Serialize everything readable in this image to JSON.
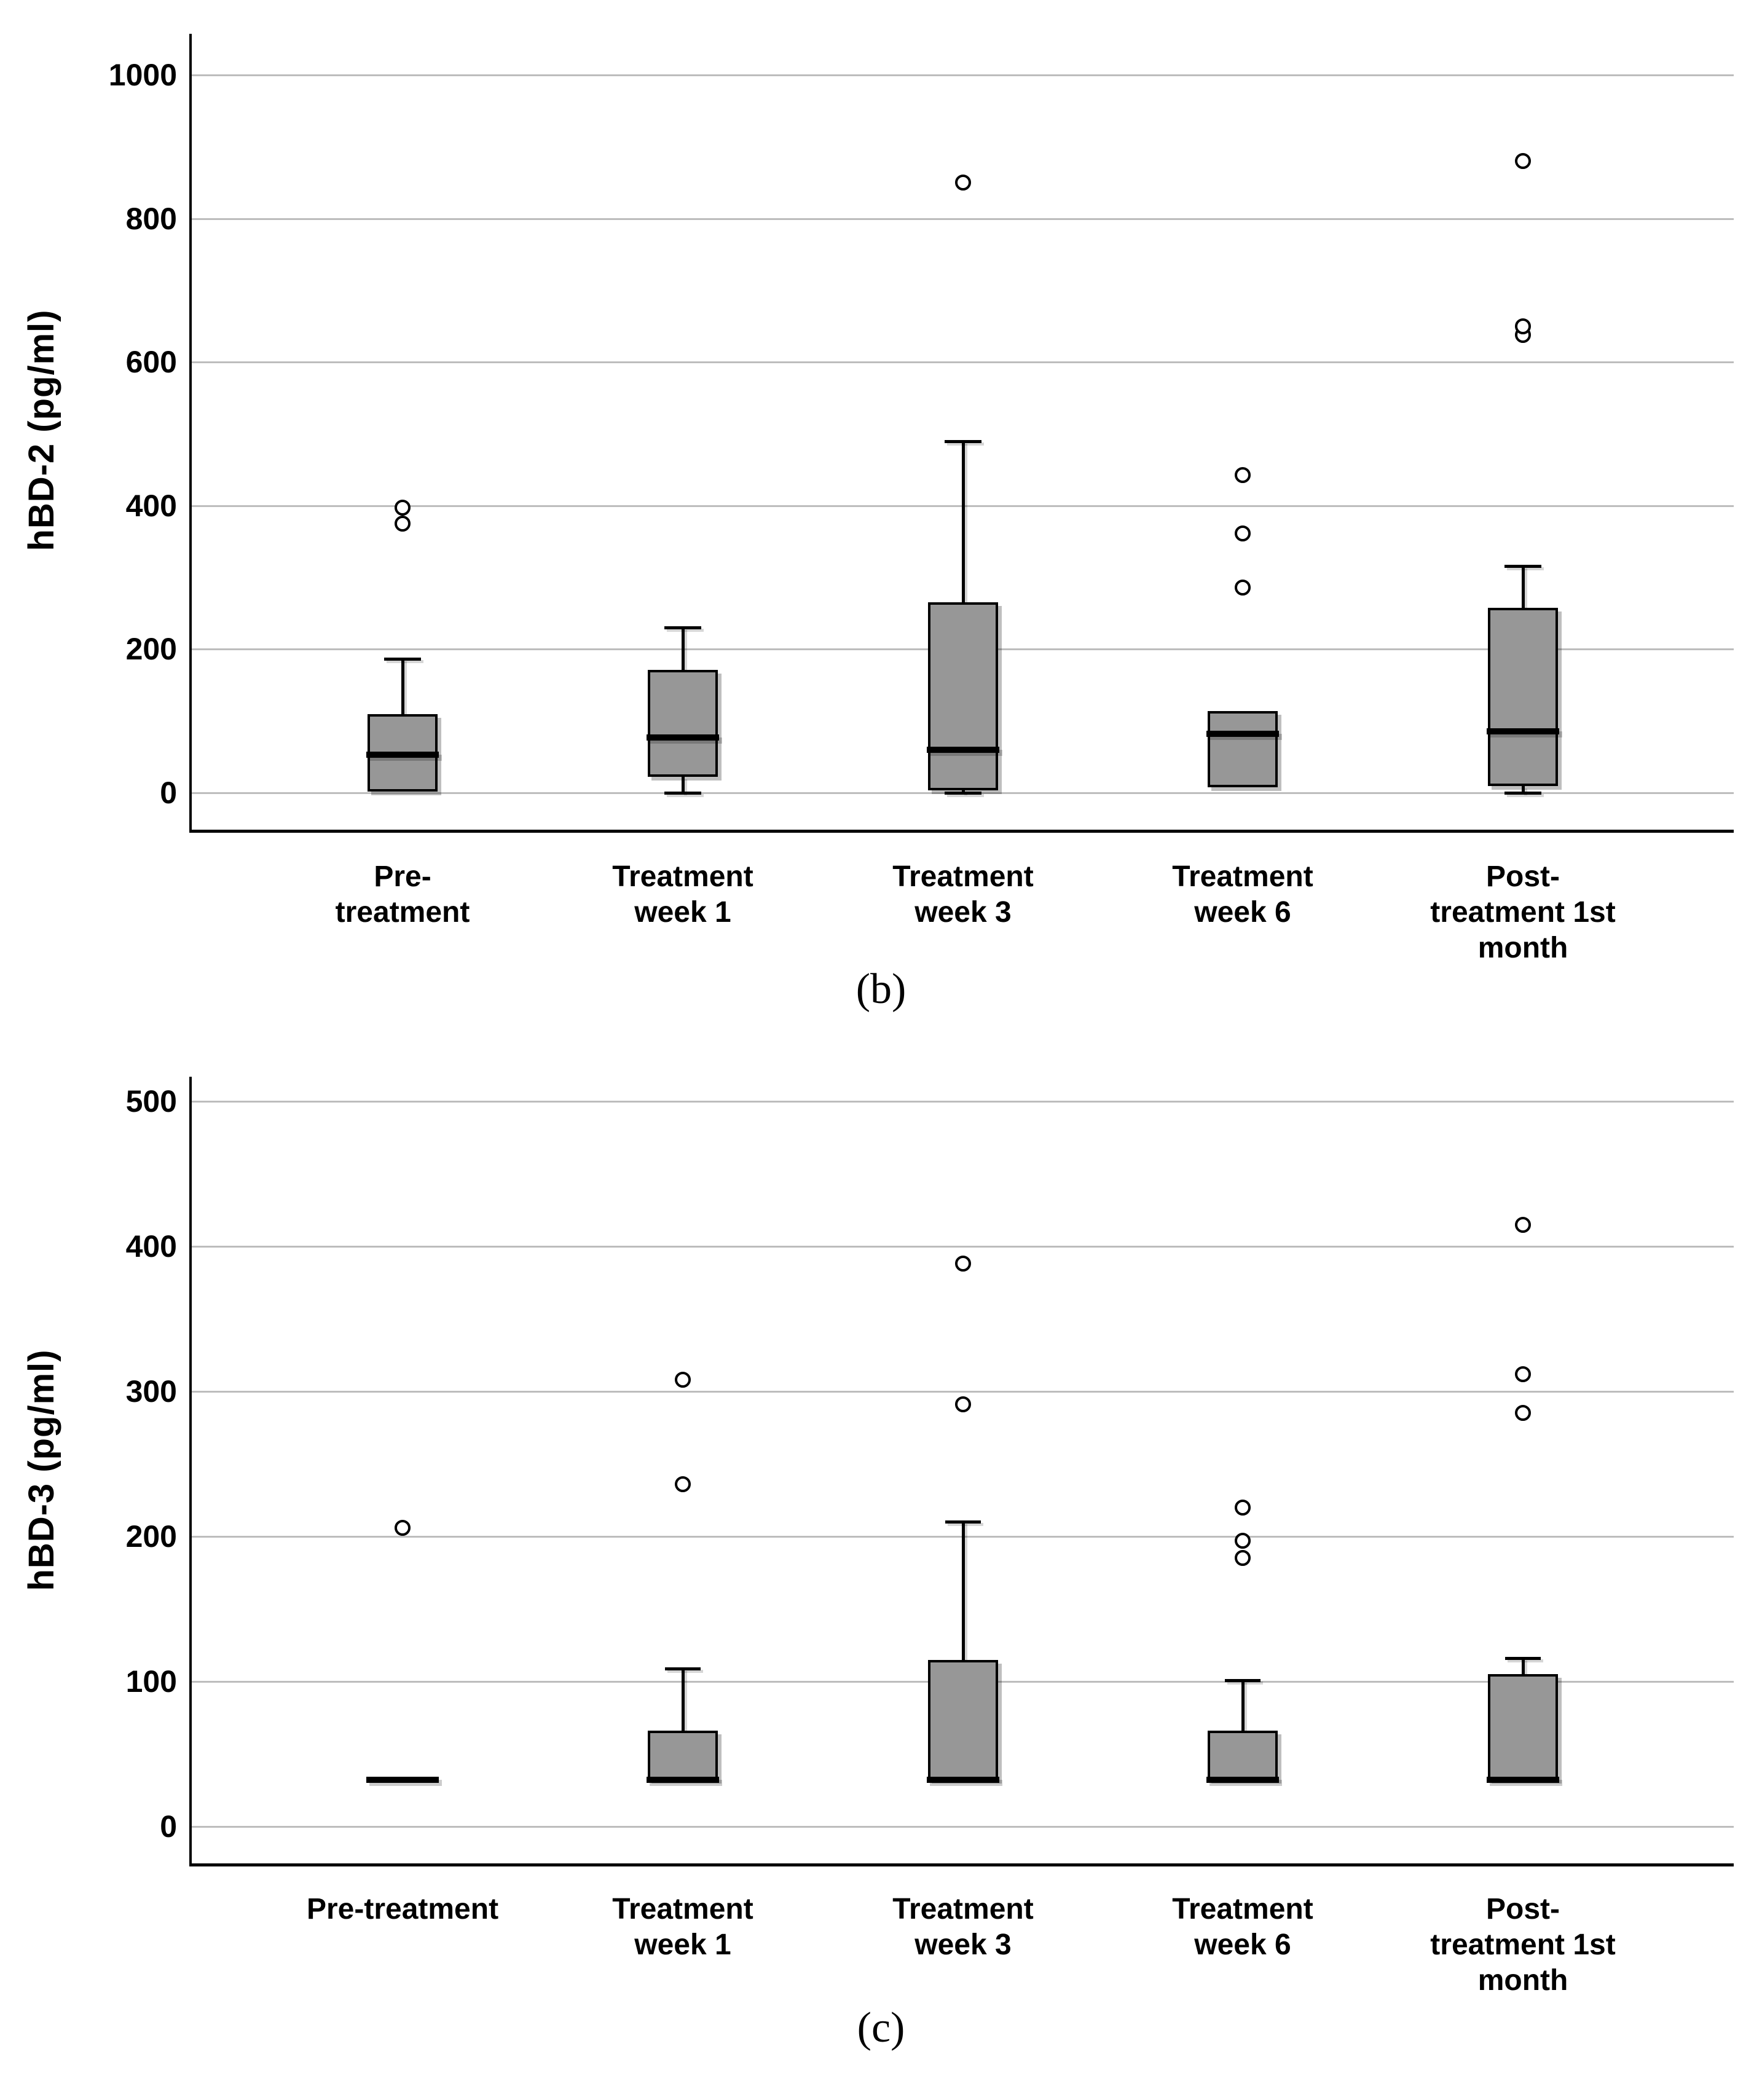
{
  "style": {
    "background": "#ffffff",
    "box_fill": "#979797",
    "box_stroke": "#000000",
    "gridline_color": "#bdbdbd",
    "axis_color": "#000000",
    "outlier_fill": "#ffffff"
  },
  "chart_data": [
    {
      "id": "b",
      "type": "box",
      "caption": "(b)",
      "ylabel": "hBD-2 (pg/ml)",
      "xlabel": "",
      "yticks": [
        0,
        200,
        400,
        600,
        800,
        1000
      ],
      "ylim": [
        -51,
        1057
      ],
      "grid": "horizontal",
      "legend": "none",
      "categories": [
        "Pre-\ntreatment",
        "Treatment\nweek 1",
        "Treatment\nweek 3",
        "Treatment\nweek 6",
        "Post-\ntreatment 1st\nmonth"
      ],
      "boxes": [
        {
          "q1": 2,
          "median": 53,
          "q3": 110,
          "whisker_low": null,
          "whisker_high": 187,
          "outliers": [
            375,
            397
          ]
        },
        {
          "q1": 22,
          "median": 77,
          "q3": 171,
          "whisker_low": 0,
          "whisker_high": 230,
          "outliers": []
        },
        {
          "q1": 3,
          "median": 60,
          "q3": 265,
          "whisker_low": 0,
          "whisker_high": 490,
          "outliers": [
            850
          ]
        },
        {
          "q1": 8,
          "median": 82,
          "q3": 114,
          "whisker_low": null,
          "whisker_high": null,
          "outliers": [
            286,
            361,
            443
          ]
        },
        {
          "q1": 9,
          "median": 86,
          "q3": 258,
          "whisker_low": 0,
          "whisker_high": 316,
          "outliers": [
            638,
            650,
            880
          ]
        }
      ]
    },
    {
      "id": "c",
      "type": "box",
      "caption": "(c)",
      "ylabel": "hBD-3 (pg/ml)",
      "xlabel": "",
      "yticks": [
        0,
        100,
        200,
        300,
        400,
        500
      ],
      "ylim": [
        -25,
        517
      ],
      "grid": "horizontal",
      "legend": "none",
      "categories": [
        "Pre-treatment",
        "Treatment\nweek 1",
        "Treatment\nweek 3",
        "Treatment\nweek 6",
        "Post-\ntreatment 1st\nmonth"
      ],
      "boxes": [
        {
          "q1": 32,
          "median": 32,
          "q3": 32,
          "whisker_low": null,
          "whisker_high": null,
          "outliers": [
            206
          ]
        },
        {
          "q1": 32,
          "median": 32,
          "q3": 66,
          "whisker_low": null,
          "whisker_high": 109,
          "outliers": [
            236,
            308
          ]
        },
        {
          "q1": 32,
          "median": 32,
          "q3": 115,
          "whisker_low": null,
          "whisker_high": 210,
          "outliers": [
            291,
            388
          ]
        },
        {
          "q1": 32,
          "median": 32,
          "q3": 66,
          "whisker_low": null,
          "whisker_high": 101,
          "outliers": [
            185,
            197,
            220
          ]
        },
        {
          "q1": 32,
          "median": 32,
          "q3": 105,
          "whisker_low": null,
          "whisker_high": 116,
          "outliers": [
            285,
            312,
            415
          ]
        }
      ]
    }
  ]
}
